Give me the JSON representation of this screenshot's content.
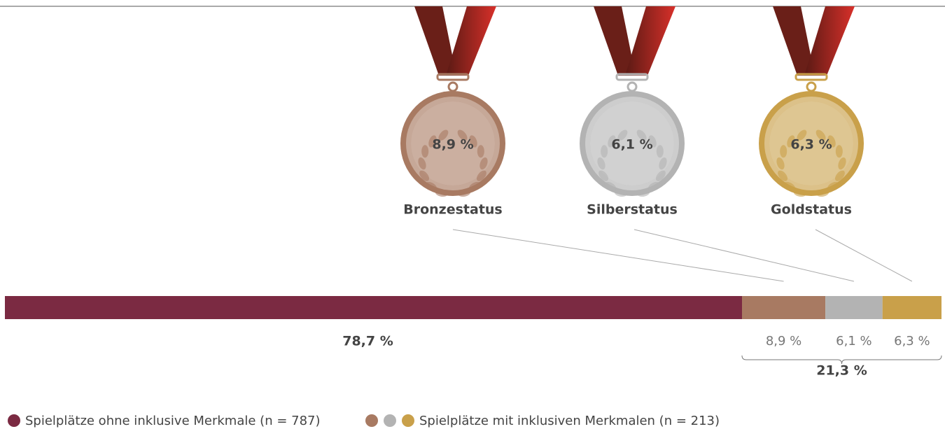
{
  "chart_data": {
    "type": "stacked-bar",
    "categories": [
      null,
      "Bronzestatus",
      "Silberstatus",
      "Goldstatus"
    ],
    "values": [
      78.7,
      8.9,
      6.1,
      6.3
    ],
    "value_labels": [
      "78,7 %",
      "8,9 %",
      "6,1 %",
      "6,3 %"
    ],
    "colors": [
      "#7b2a42",
      "#a87a62",
      "#b3b3b3",
      "#c9a04a"
    ],
    "xlim": [
      0,
      100
    ],
    "group_total": {
      "value": 21.3,
      "label": "21,3 %"
    },
    "legend": [
      {
        "name": "Spielplätze ohne inklusive Merkmale (n = 787)",
        "colors": [
          "#7b2a42"
        ]
      },
      {
        "name": "Spielplätze mit inklusiven Merkmalen (n = 213)",
        "colors": [
          "#a87a62",
          "#b3b3b3",
          "#c9a04a"
        ]
      }
    ]
  }
}
